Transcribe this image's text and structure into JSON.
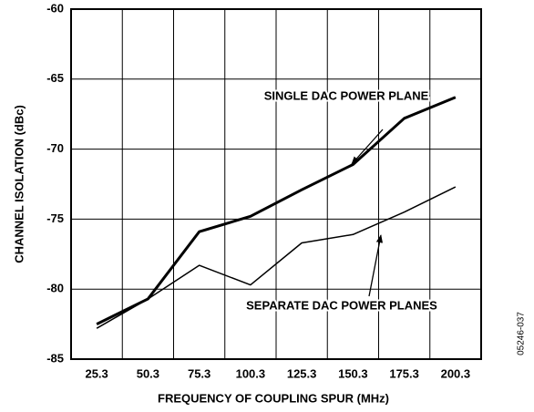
{
  "chart_data": {
    "type": "line",
    "categories": [
      "25.3",
      "50.3",
      "75.3",
      "100.3",
      "125.3",
      "150.3",
      "175.3",
      "200.3"
    ],
    "series": [
      {
        "name": "SINGLE DAC POWER PLANE",
        "color": "#000000",
        "values": [
          -82.5,
          -80.7,
          -75.9,
          -74.8,
          -72.9,
          -71.1,
          -67.8,
          -66.3
        ]
      },
      {
        "name": "SEPARATE DAC POWER PLANES",
        "color": "#000000",
        "values": [
          -82.8,
          -80.7,
          -78.3,
          -79.7,
          -76.7,
          -76.1,
          -74.5,
          -72.7
        ]
      }
    ],
    "ylim": [
      -85,
      -60
    ],
    "yticks": [
      -85,
      -80,
      -75,
      -70,
      -65,
      -60
    ],
    "grid": true,
    "xlabel": "FREQUENCY OF COUPLING SPUR (MHz)",
    "ylabel": "CHANNEL ISOLATION (dBc)",
    "figure_id": "05246-037"
  }
}
